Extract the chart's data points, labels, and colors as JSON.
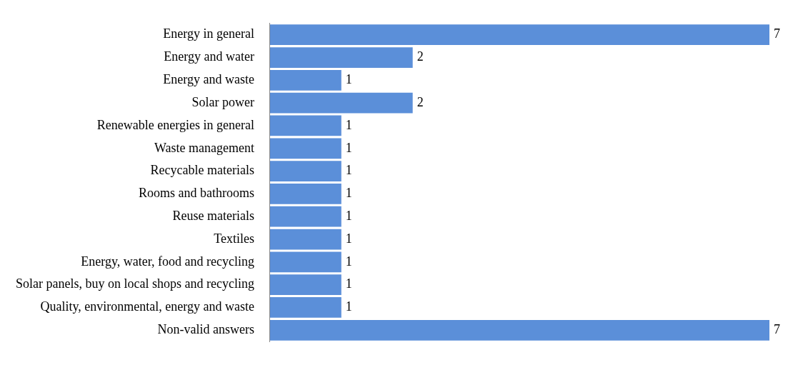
{
  "chart_data": {
    "type": "bar",
    "orientation": "horizontal",
    "categories": [
      "Energy in general",
      "Energy and water",
      "Energy and waste",
      "Solar power",
      "Renewable energies in general",
      "Waste management",
      "Recycable materials",
      "Rooms and bathrooms",
      "Reuse materials",
      "Textiles",
      "Energy, water, food and recycling",
      "Solar panels, buy on local shops and recycling",
      "Quality, environmental, energy and waste",
      "Non-valid answers"
    ],
    "values": [
      7,
      2,
      1,
      2,
      1,
      1,
      1,
      1,
      1,
      1,
      1,
      1,
      1,
      7
    ],
    "color": "#5b8fd9",
    "xlim": [
      0,
      7
    ],
    "tick_labels": "y",
    "grid": false,
    "legend": false,
    "data_labels": true
  }
}
